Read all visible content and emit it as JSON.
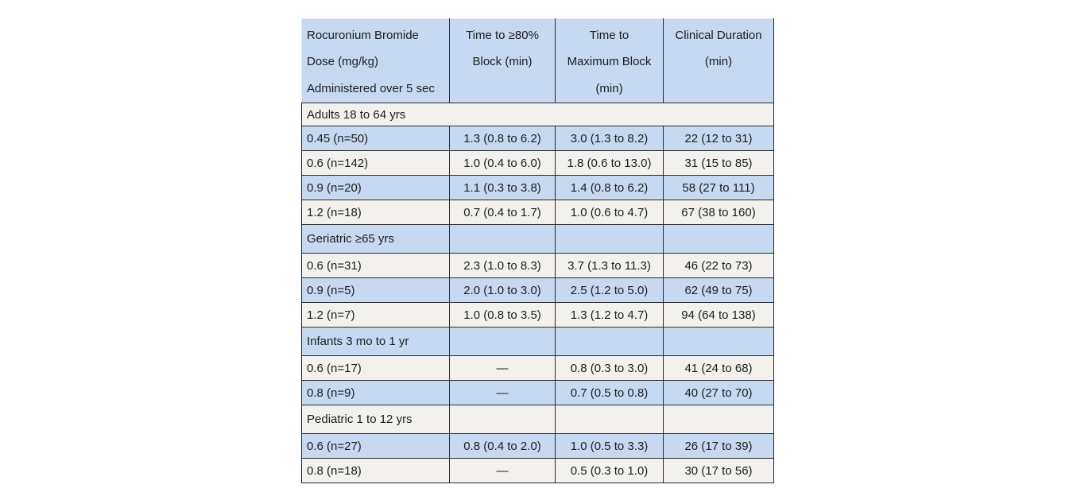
{
  "colors": {
    "page_bg": "#ffffff",
    "blue": "#c6d9f0",
    "stripe": "#f2f1ee",
    "border": "#2b2b2b",
    "text": "#1d1d1d"
  },
  "table": {
    "columns": [
      {
        "id": "dose",
        "lines": [
          "Rocuronium Bromide",
          "Dose (mg/kg)",
          "Administered over 5 sec"
        ]
      },
      {
        "id": "time-to-80-block",
        "lines": [
          "Time to ≥80%",
          "Block (min)"
        ]
      },
      {
        "id": "time-to-maximum-block",
        "lines": [
          "Time to",
          "Maximum Block",
          "(min)"
        ]
      },
      {
        "id": "clinical-duration",
        "lines": [
          "Clinical Duration",
          "(min)"
        ]
      }
    ],
    "rows": [
      {
        "type": "section-span",
        "label": "Adults 18 to 64 yrs"
      },
      {
        "type": "data",
        "cells": [
          "0.45 (n=50)",
          "1.3 (0.8 to 6.2)",
          "3.0 (1.3 to 8.2)",
          "22 (12 to 31)"
        ]
      },
      {
        "type": "data",
        "cells": [
          "0.6 (n=142)",
          "1.0 (0.4 to 6.0)",
          "1.8 (0.6 to 13.0)",
          "31 (15 to 85)"
        ]
      },
      {
        "type": "data",
        "cells": [
          "0.9 (n=20)",
          "1.1 (0.3 to 3.8)",
          "1.4 (0.8 to 6.2)",
          "58 (27 to 111)"
        ]
      },
      {
        "type": "data",
        "cells": [
          "1.2 (n=18)",
          "0.7 (0.4 to 1.7)",
          "1.0 (0.6 to 4.7)",
          "67 (38 to 160)"
        ]
      },
      {
        "type": "section",
        "label": "Geriatric ≥65 yrs"
      },
      {
        "type": "data",
        "cells": [
          "0.6 (n=31)",
          "2.3 (1.0 to 8.3)",
          "3.7 (1.3 to 11.3)",
          "46 (22 to 73)"
        ]
      },
      {
        "type": "data",
        "cells": [
          "0.9 (n=5)",
          "2.0 (1.0 to 3.0)",
          "2.5 (1.2 to 5.0)",
          "62 (49 to 75)"
        ]
      },
      {
        "type": "data",
        "cells": [
          "1.2 (n=7)",
          "1.0 (0.8 to 3.5)",
          "1.3 (1.2 to 4.7)",
          "94 (64 to 138)"
        ]
      },
      {
        "type": "section",
        "label": "Infants 3 mo to 1 yr"
      },
      {
        "type": "data",
        "cells": [
          "0.6 (n=17)",
          "—",
          "0.8 (0.3 to 3.0)",
          "41 (24 to 68)"
        ]
      },
      {
        "type": "data",
        "cells": [
          "0.8 (n=9)",
          "—",
          "0.7 (0.5 to 0.8)",
          "40 (27 to 70)"
        ]
      },
      {
        "type": "section",
        "label": "Pediatric 1 to 12 yrs"
      },
      {
        "type": "data",
        "cells": [
          "0.6 (n=27)",
          "0.8 (0.4 to 2.0)",
          "1.0 (0.5 to 3.3)",
          "26 (17 to 39)"
        ]
      },
      {
        "type": "data",
        "cells": [
          "0.8 (n=18)",
          "—",
          "0.5 (0.3 to 1.0)",
          "30 (17 to 56)"
        ]
      }
    ]
  }
}
